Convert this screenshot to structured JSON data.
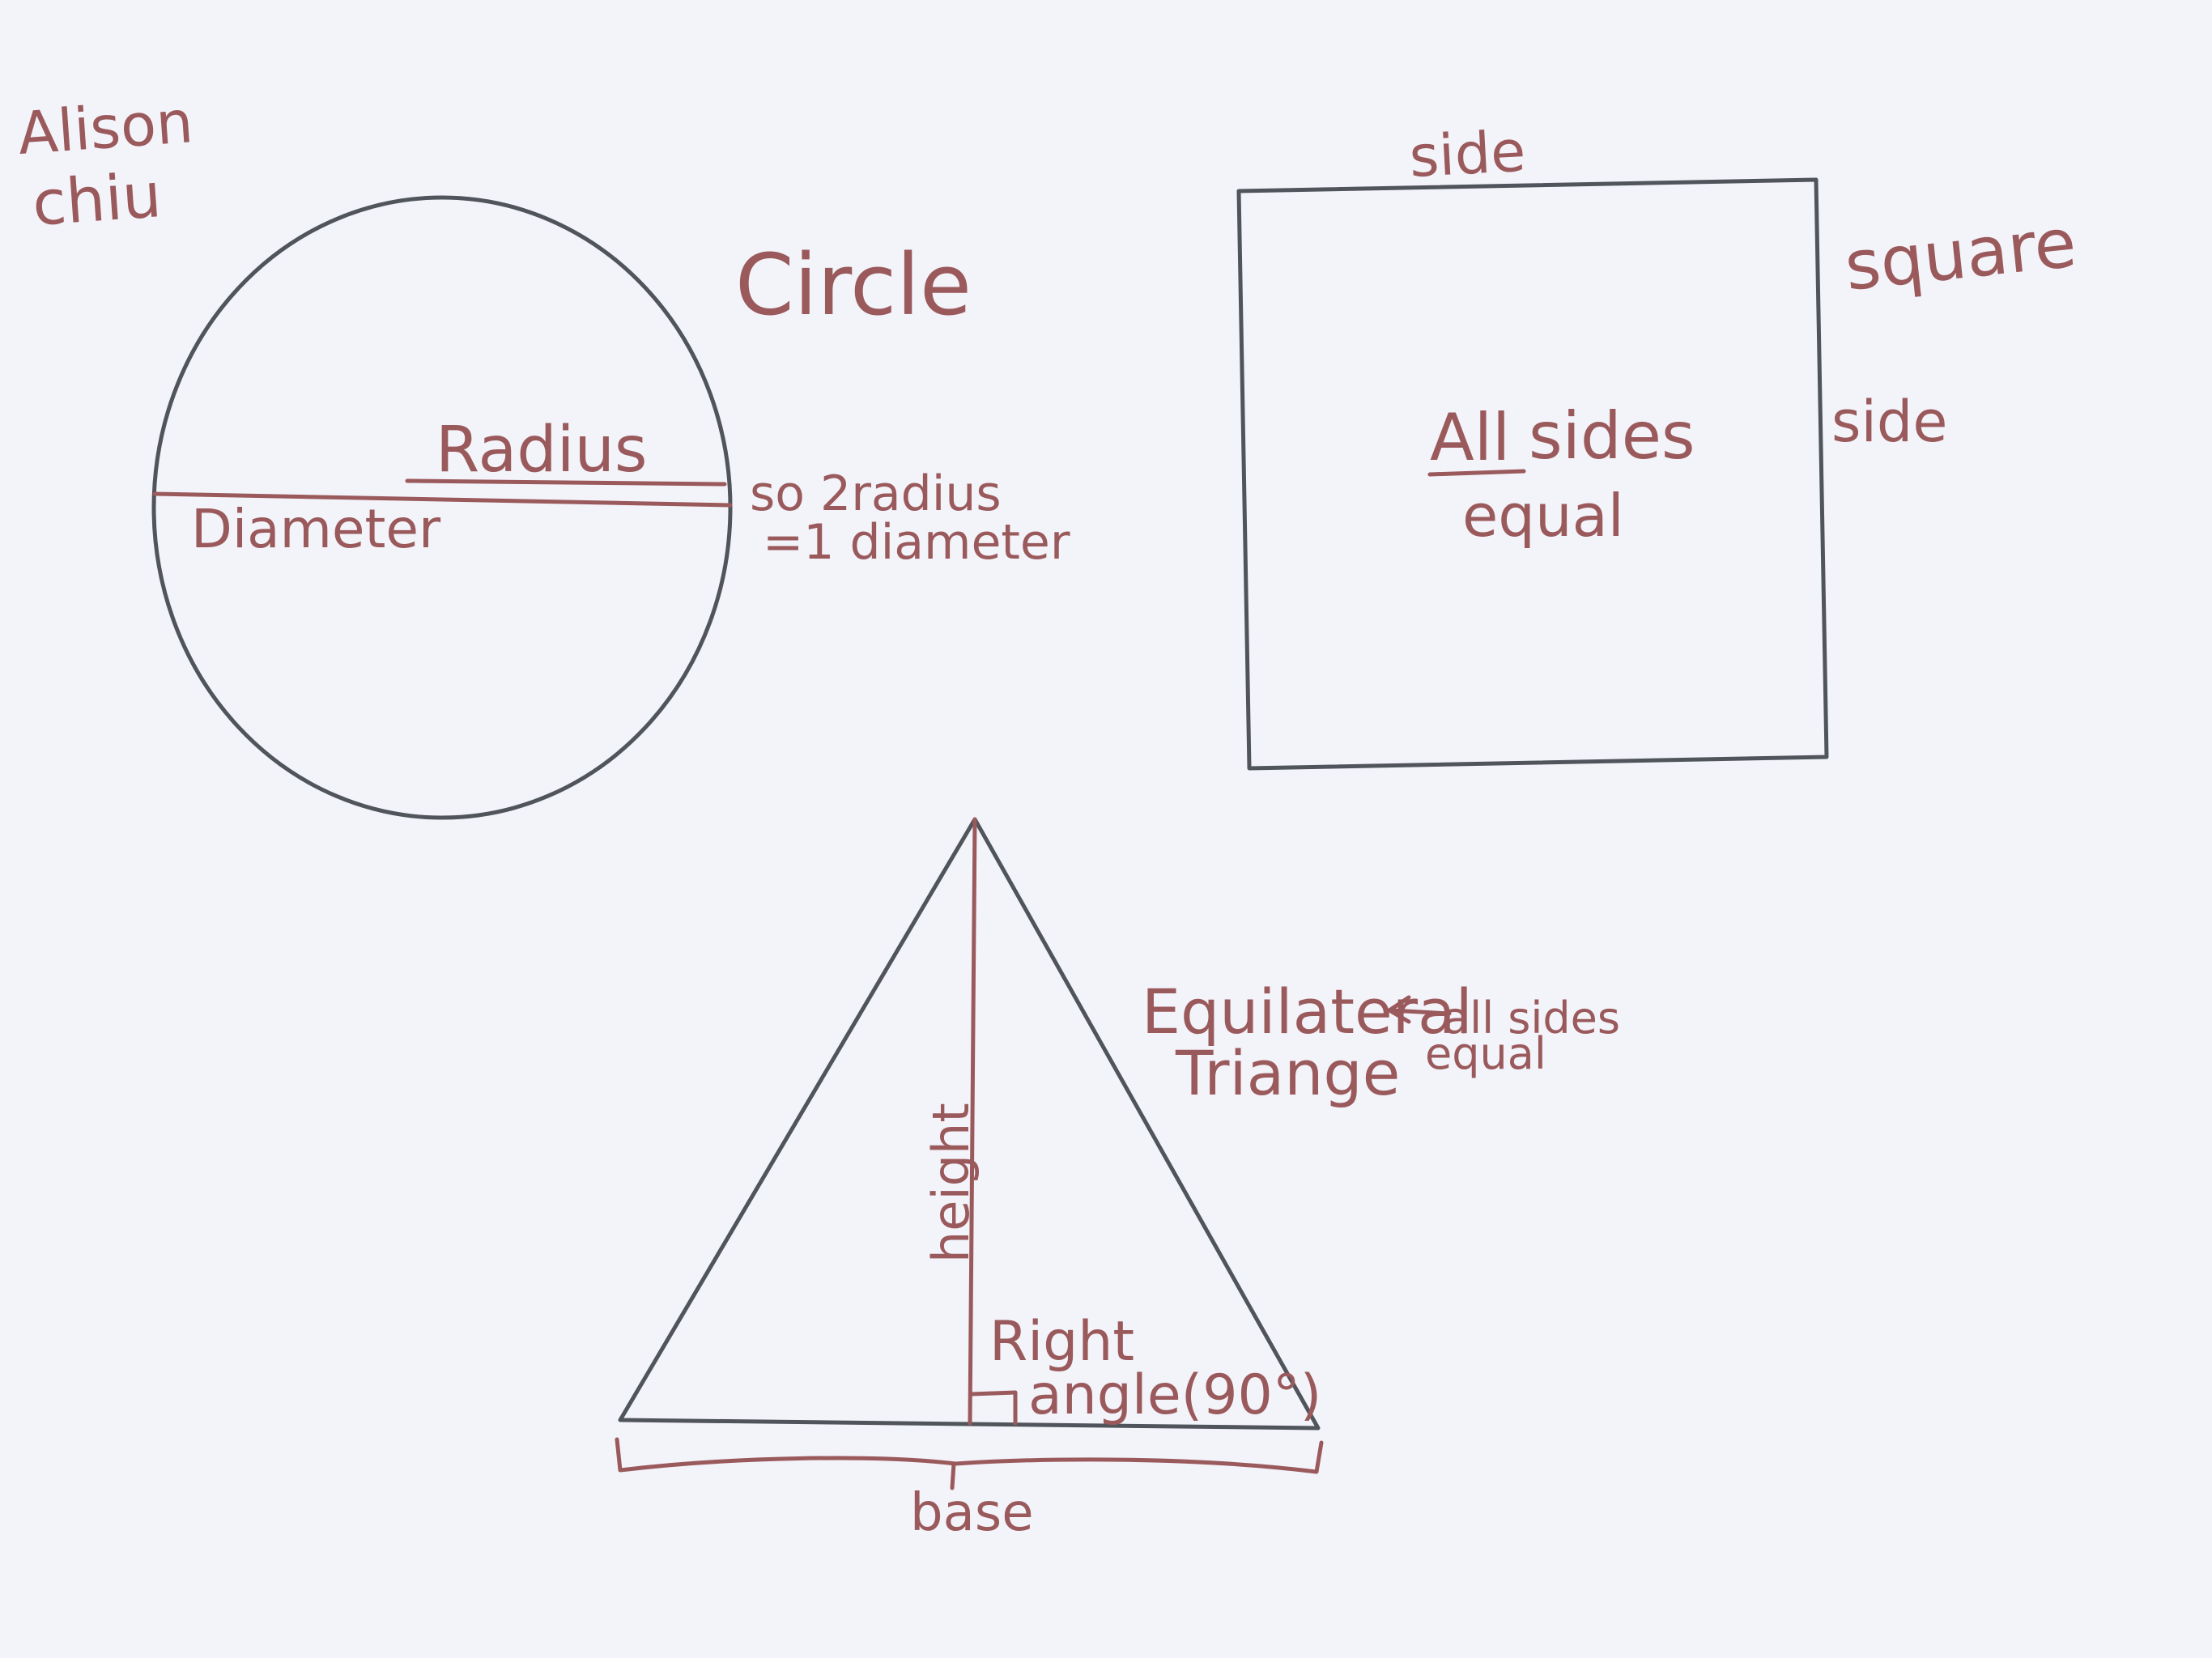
{
  "author": {
    "line1": "Alison",
    "line2": "chiu"
  },
  "circle": {
    "title": "Circle",
    "radius_label": "Radius",
    "diameter_label": "Diameter",
    "note_line1": "so 2radius",
    "note_line2": "=1 diameter"
  },
  "square": {
    "title": "square",
    "side_top_label": "side",
    "side_right_label": "side",
    "note_all": "All",
    "note_sides": "sides",
    "note_equal": "equal"
  },
  "triangle": {
    "title_line1": "Equilateral",
    "title_line2": "Triange",
    "note_line1": "all sides",
    "note_line2": "equal",
    "height_label": "height",
    "right_angle_line1": "Right",
    "right_angle_line2": "angle(90°)",
    "base_label": "base"
  },
  "colors": {
    "shape_stroke": "#50555b",
    "ink": "#9a5a5c",
    "background": "#f3f3fa"
  }
}
